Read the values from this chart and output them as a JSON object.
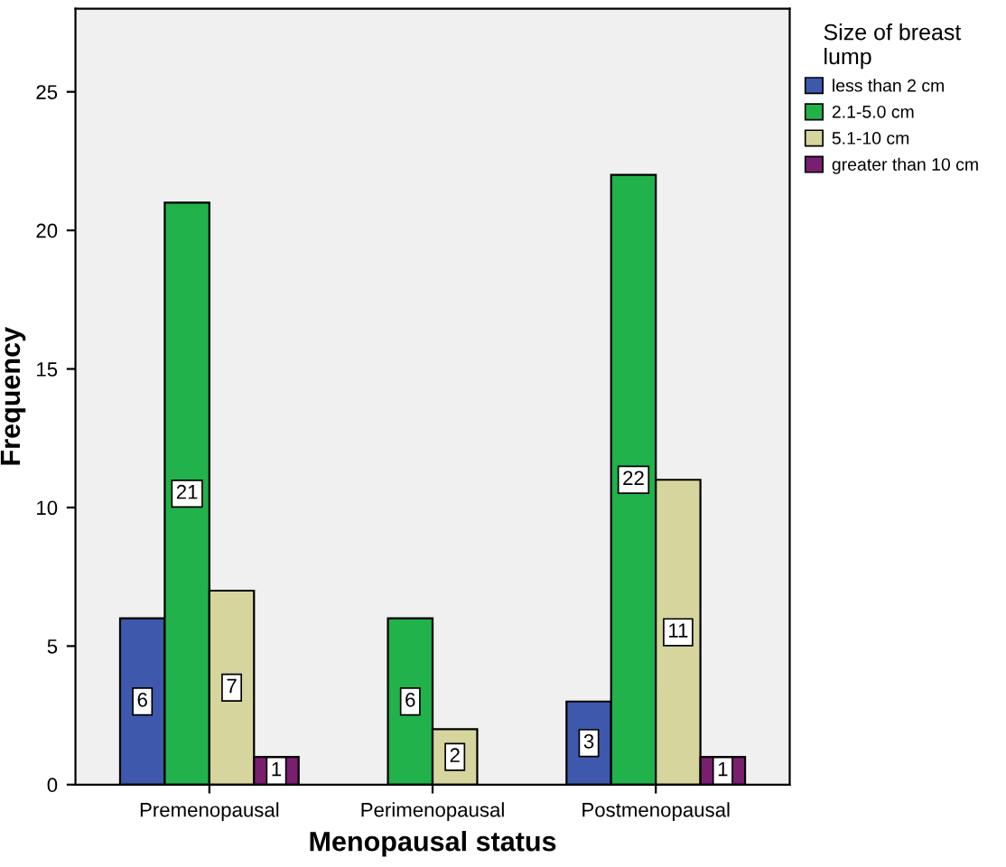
{
  "chart_data": {
    "type": "bar",
    "xlabel": "Menopausal status",
    "ylabel": "Frequency",
    "legend_title": "Size of breast\nlump",
    "categories": [
      "Premenopausal",
      "Perimenopausal",
      "Postmenopausal"
    ],
    "series": [
      {
        "name": "less than 2 cm",
        "color": "#3e58ac",
        "values": [
          6,
          null,
          3
        ]
      },
      {
        "name": "2.1-5.0 cm",
        "color": "#21b24b",
        "values": [
          21,
          6,
          22
        ]
      },
      {
        "name": "5.1-10 cm",
        "color": "#d7d59e",
        "values": [
          7,
          2,
          11
        ]
      },
      {
        "name": "greater than 10 cm",
        "color": "#7a1f6f",
        "values": [
          1,
          null,
          1
        ]
      }
    ],
    "ylim": [
      0,
      28
    ],
    "yticks": [
      0,
      5,
      10,
      15,
      20,
      25
    ],
    "grid": false,
    "legend": "right",
    "data_labels": true
  }
}
